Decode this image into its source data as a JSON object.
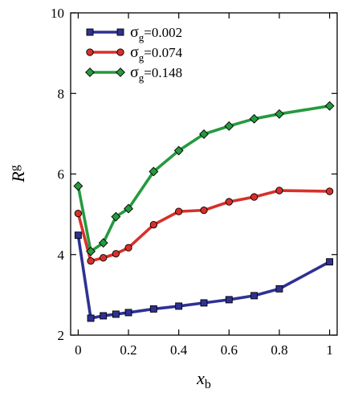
{
  "chart_data": {
    "type": "line",
    "xlabel": {
      "main": "x",
      "sub": "b"
    },
    "ylabel": {
      "main": "R",
      "sub": "g"
    },
    "xlim": [
      -0.03,
      1.03
    ],
    "ylim": [
      2,
      10
    ],
    "xticks": [
      0,
      0.2,
      0.4,
      0.6,
      0.8,
      1
    ],
    "xtick_labels": [
      "0",
      "0.2",
      "0.4",
      "0.6",
      "0.8",
      "1"
    ],
    "yticks": [
      2,
      4,
      6,
      8,
      10
    ],
    "ytick_labels": [
      "2",
      "4",
      "6",
      "8",
      "10"
    ],
    "legend_position": "top-left",
    "series": [
      {
        "name": "σg=0.002",
        "legend_main": "σ",
        "legend_sub": "g",
        "legend_value": "=0.002",
        "color": "#2e3193",
        "marker": "square",
        "x": [
          0,
          0.05,
          0.1,
          0.15,
          0.2,
          0.3,
          0.4,
          0.5,
          0.6,
          0.7,
          0.8,
          1.0
        ],
        "y": [
          4.48,
          2.42,
          2.48,
          2.52,
          2.56,
          2.65,
          2.72,
          2.8,
          2.88,
          2.98,
          3.15,
          3.82
        ]
      },
      {
        "name": "σg=0.074",
        "legend_main": "σ",
        "legend_sub": "g",
        "legend_value": "=0.074",
        "color": "#d7302b",
        "marker": "circle",
        "x": [
          0,
          0.05,
          0.1,
          0.15,
          0.2,
          0.3,
          0.4,
          0.5,
          0.6,
          0.7,
          0.8,
          1.0
        ],
        "y": [
          5.02,
          3.84,
          3.92,
          4.02,
          4.17,
          4.74,
          5.07,
          5.1,
          5.31,
          5.43,
          5.59,
          5.57
        ]
      },
      {
        "name": "σg=0.148",
        "legend_main": "σ",
        "legend_sub": "g",
        "legend_value": "=0.148",
        "color": "#259a3e",
        "marker": "diamond",
        "x": [
          0,
          0.05,
          0.1,
          0.15,
          0.2,
          0.3,
          0.4,
          0.5,
          0.6,
          0.7,
          0.8,
          1.0
        ],
        "y": [
          5.7,
          4.08,
          4.29,
          4.94,
          5.14,
          6.06,
          6.58,
          6.99,
          7.19,
          7.37,
          7.49,
          7.69
        ]
      }
    ]
  }
}
